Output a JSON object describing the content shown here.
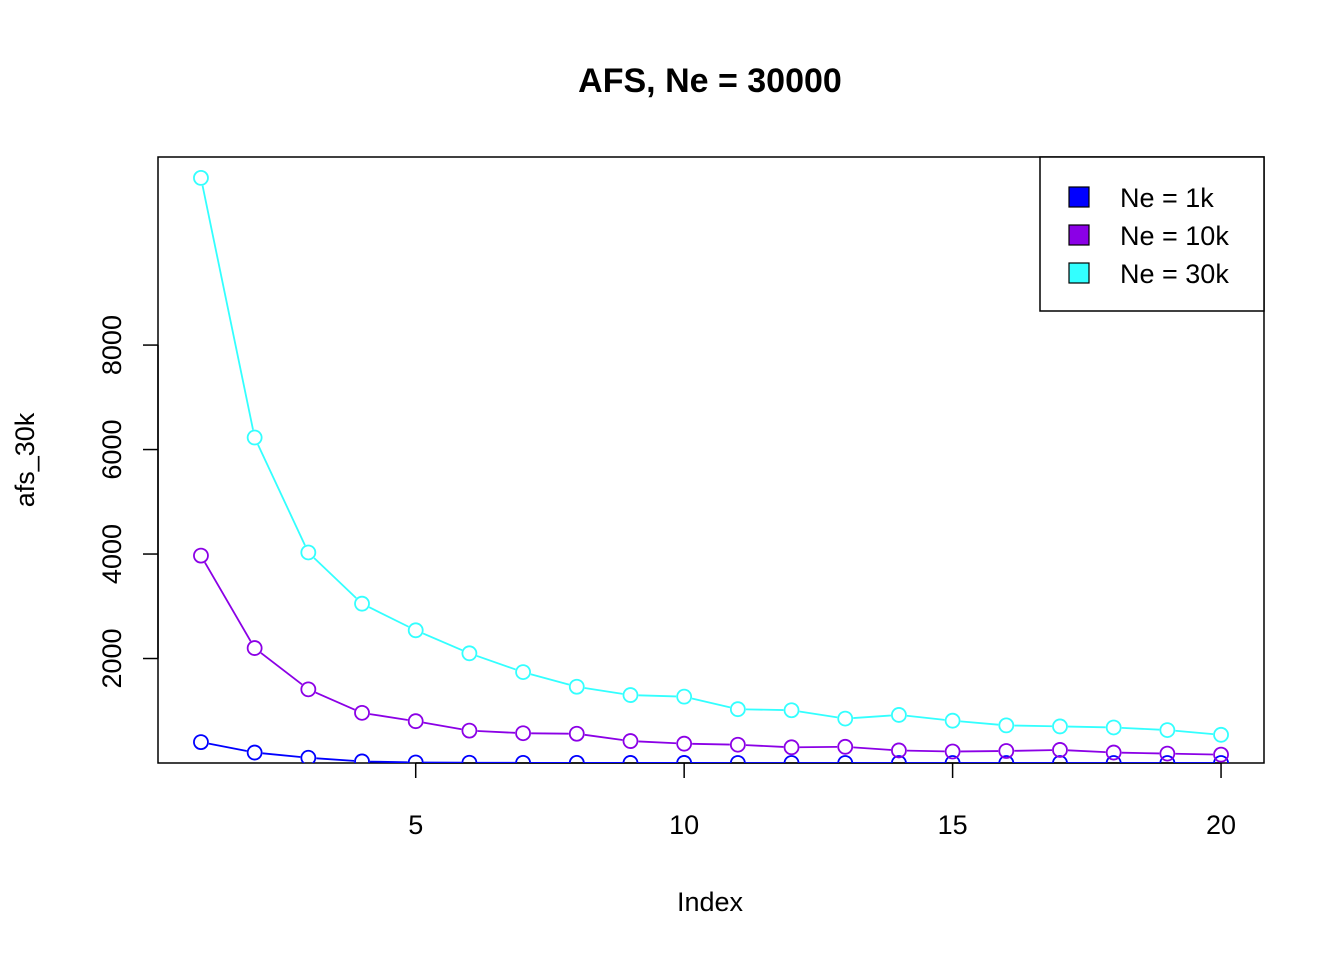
{
  "chart_data": {
    "type": "line",
    "title": "AFS, Ne = 30000",
    "xlabel": "Index",
    "ylabel": "afs_30k",
    "x": [
      1,
      2,
      3,
      4,
      5,
      6,
      7,
      8,
      9,
      10,
      11,
      12,
      13,
      14,
      15,
      16,
      17,
      18,
      19,
      20
    ],
    "xlim": [
      0.2,
      20.8
    ],
    "ylim": [
      0,
      11600
    ],
    "xticks": [
      5,
      10,
      15,
      20
    ],
    "yticks": [
      2000,
      4000,
      6000,
      8000
    ],
    "grid": false,
    "legend_position": "top-right",
    "series": [
      {
        "name": "Ne = 1k",
        "color": "#0000ff",
        "values": [
          400,
          200,
          100,
          30,
          10,
          5,
          3,
          2,
          1,
          1,
          0,
          0,
          0,
          0,
          0,
          0,
          0,
          0,
          0,
          0
        ]
      },
      {
        "name": "Ne = 10k",
        "color": "#8b00e6",
        "values": [
          3970,
          2200,
          1410,
          960,
          800,
          620,
          570,
          560,
          420,
          370,
          350,
          300,
          310,
          240,
          220,
          230,
          250,
          200,
          180,
          160
        ]
      },
      {
        "name": "Ne = 30k",
        "color": "#33ffff",
        "values": [
          11200,
          6230,
          4030,
          3050,
          2540,
          2100,
          1740,
          1460,
          1300,
          1270,
          1030,
          1010,
          850,
          920,
          810,
          720,
          700,
          680,
          630,
          540
        ]
      }
    ]
  }
}
